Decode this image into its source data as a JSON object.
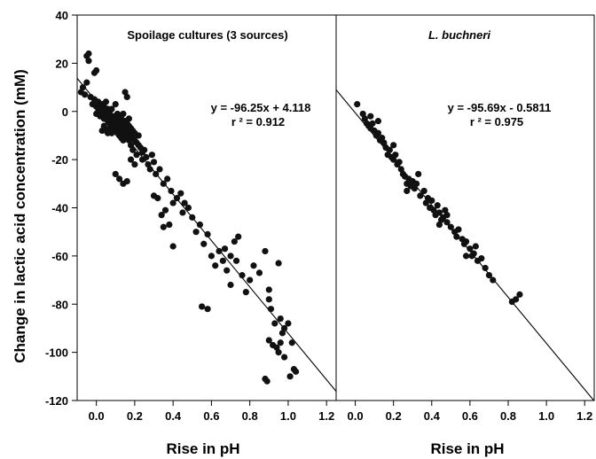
{
  "chart_data": [
    {
      "type": "scatter",
      "panel": "left",
      "title": "Spoilage cultures (3 sources)",
      "title_italic": false,
      "xlabel": "Rise in pH",
      "ylabel": "Change in lactic acid concentration (mM)",
      "xlim": [
        -0.1,
        1.25
      ],
      "ylim": [
        -120,
        40
      ],
      "x_ticks": [
        "0.0",
        "0.2",
        "0.4",
        "0.6",
        "0.8",
        "1.0",
        "1.2"
      ],
      "y_ticks": [
        "40",
        "20",
        "0",
        "-20",
        "-40",
        "-60",
        "-80",
        "-100",
        "-120"
      ],
      "equation": "y = -96.25x + 4.118",
      "r_squared": "r ² = 0.912",
      "regression": {
        "slope": -96.25,
        "intercept": 4.118
      },
      "points": [
        [
          -0.08,
          8
        ],
        [
          -0.07,
          10
        ],
        [
          -0.06,
          7
        ],
        [
          -0.05,
          12
        ],
        [
          -0.05,
          23
        ],
        [
          -0.04,
          24
        ],
        [
          -0.04,
          21
        ],
        [
          -0.03,
          6
        ],
        [
          -0.02,
          3
        ],
        [
          -0.01,
          5
        ],
        [
          -0.01,
          16
        ],
        [
          0.0,
          17
        ],
        [
          0.0,
          2
        ],
        [
          0.0,
          -1
        ],
        [
          0.01,
          4
        ],
        [
          0.01,
          0
        ],
        [
          0.02,
          2
        ],
        [
          0.02,
          -2
        ],
        [
          0.02,
          1
        ],
        [
          0.03,
          3
        ],
        [
          0.03,
          -1
        ],
        [
          0.03,
          -8
        ],
        [
          0.04,
          -3
        ],
        [
          0.04,
          2
        ],
        [
          0.04,
          -6
        ],
        [
          0.05,
          0
        ],
        [
          0.05,
          -2
        ],
        [
          0.05,
          4
        ],
        [
          0.05,
          -8
        ],
        [
          0.06,
          -1
        ],
        [
          0.06,
          -4
        ],
        [
          0.06,
          1
        ],
        [
          0.06,
          -9
        ],
        [
          0.07,
          -2
        ],
        [
          0.07,
          -5
        ],
        [
          0.07,
          0
        ],
        [
          0.07,
          -7
        ],
        [
          0.08,
          -3
        ],
        [
          0.08,
          -6
        ],
        [
          0.08,
          1
        ],
        [
          0.08,
          -9
        ],
        [
          0.09,
          -4
        ],
        [
          0.09,
          -7
        ],
        [
          0.09,
          -2
        ],
        [
          0.1,
          -5
        ],
        [
          0.1,
          -8
        ],
        [
          0.1,
          -3
        ],
        [
          0.1,
          3
        ],
        [
          0.11,
          -6
        ],
        [
          0.11,
          -9
        ],
        [
          0.11,
          -4
        ],
        [
          0.11,
          -1
        ],
        [
          0.12,
          -7
        ],
        [
          0.12,
          -10
        ],
        [
          0.12,
          -5
        ],
        [
          0.12,
          -2
        ],
        [
          0.13,
          -8
        ],
        [
          0.13,
          -11
        ],
        [
          0.13,
          -6
        ],
        [
          0.13,
          -3
        ],
        [
          0.14,
          -9
        ],
        [
          0.14,
          -12
        ],
        [
          0.14,
          -5
        ],
        [
          0.14,
          -1
        ],
        [
          0.15,
          -10
        ],
        [
          0.15,
          -7
        ],
        [
          0.15,
          -4
        ],
        [
          0.15,
          8
        ],
        [
          0.16,
          -11
        ],
        [
          0.16,
          -8
        ],
        [
          0.16,
          -5
        ],
        [
          0.16,
          6
        ],
        [
          0.17,
          -12
        ],
        [
          0.17,
          -9
        ],
        [
          0.17,
          -6
        ],
        [
          0.17,
          -3
        ],
        [
          0.18,
          -10
        ],
        [
          0.18,
          -7
        ],
        [
          0.18,
          -14
        ],
        [
          0.19,
          -11
        ],
        [
          0.19,
          -8
        ],
        [
          0.19,
          -16
        ],
        [
          0.2,
          -12
        ],
        [
          0.2,
          -9
        ],
        [
          0.21,
          -13
        ],
        [
          0.21,
          -18
        ],
        [
          0.22,
          -14
        ],
        [
          0.22,
          -10
        ],
        [
          0.23,
          -15
        ],
        [
          0.24,
          -17
        ],
        [
          0.24,
          -20
        ],
        [
          0.25,
          -16
        ],
        [
          0.26,
          -19
        ],
        [
          0.27,
          -22
        ],
        [
          0.28,
          -24
        ],
        [
          0.29,
          -18
        ],
        [
          0.3,
          -21
        ],
        [
          0.31,
          -26
        ],
        [
          0.33,
          -24
        ],
        [
          0.35,
          -30
        ],
        [
          0.37,
          -28
        ],
        [
          0.39,
          -33
        ],
        [
          0.1,
          -26
        ],
        [
          0.12,
          -28
        ],
        [
          0.14,
          -30
        ],
        [
          0.16,
          -29
        ],
        [
          0.18,
          -20
        ],
        [
          0.2,
          -22
        ],
        [
          0.3,
          -35
        ],
        [
          0.32,
          -36
        ],
        [
          0.34,
          -43
        ],
        [
          0.35,
          -48
        ],
        [
          0.38,
          -47
        ],
        [
          0.36,
          -41
        ],
        [
          0.4,
          -38
        ],
        [
          0.42,
          -36
        ],
        [
          0.44,
          -34
        ],
        [
          0.45,
          -42
        ],
        [
          0.46,
          -38
        ],
        [
          0.48,
          -40
        ],
        [
          0.4,
          -56
        ],
        [
          0.5,
          -44
        ],
        [
          0.52,
          -50
        ],
        [
          0.54,
          -47
        ],
        [
          0.56,
          -55
        ],
        [
          0.58,
          -51
        ],
        [
          0.55,
          -81
        ],
        [
          0.58,
          -82
        ],
        [
          0.6,
          -60
        ],
        [
          0.62,
          -64
        ],
        [
          0.64,
          -58
        ],
        [
          0.66,
          -62
        ],
        [
          0.67,
          -57
        ],
        [
          0.68,
          -66
        ],
        [
          0.7,
          -60
        ],
        [
          0.72,
          -54
        ],
        [
          0.73,
          -62
        ],
        [
          0.74,
          -52
        ],
        [
          0.7,
          -72
        ],
        [
          0.76,
          -68
        ],
        [
          0.78,
          -75
        ],
        [
          0.8,
          -70
        ],
        [
          0.82,
          -64
        ],
        [
          0.85,
          -67
        ],
        [
          0.88,
          -58
        ],
        [
          0.9,
          -74
        ],
        [
          0.9,
          -78
        ],
        [
          0.91,
          -82
        ],
        [
          0.93,
          -88
        ],
        [
          0.95,
          -63
        ],
        [
          0.96,
          -86
        ],
        [
          0.97,
          -92
        ],
        [
          0.98,
          -90
        ],
        [
          0.9,
          -95
        ],
        [
          0.92,
          -97
        ],
        [
          0.94,
          -98
        ],
        [
          0.95,
          -100
        ],
        [
          0.96,
          -96
        ],
        [
          1.0,
          -88
        ],
        [
          1.02,
          -96
        ],
        [
          1.03,
          -107
        ],
        [
          1.04,
          -108
        ],
        [
          0.88,
          -111
        ],
        [
          0.89,
          -112
        ],
        [
          0.98,
          -102
        ],
        [
          1.01,
          -110
        ]
      ]
    },
    {
      "type": "scatter",
      "panel": "right",
      "title": "L. buchneri",
      "title_italic": true,
      "xlabel": "Rise in pH",
      "ylabel": "",
      "xlim": [
        -0.1,
        1.25
      ],
      "ylim": [
        -120,
        40
      ],
      "x_ticks": [
        "0.0",
        "0.2",
        "0.4",
        "0.6",
        "0.8",
        "1.0",
        "1.2"
      ],
      "equation": "y = -95.69x - 0.5811",
      "r_squared": "r ² = 0.975",
      "regression": {
        "slope": -95.69,
        "intercept": -0.5811
      },
      "points": [
        [
          0.01,
          3
        ],
        [
          0.04,
          -1
        ],
        [
          0.05,
          -3
        ],
        [
          0.06,
          -5
        ],
        [
          0.07,
          -6
        ],
        [
          0.08,
          -7
        ],
        [
          0.09,
          -5
        ],
        [
          0.1,
          -8
        ],
        [
          0.11,
          -10
        ],
        [
          0.12,
          -9
        ],
        [
          0.13,
          -12
        ],
        [
          0.14,
          -11
        ],
        [
          0.15,
          -13
        ],
        [
          0.16,
          -15
        ],
        [
          0.17,
          -18
        ],
        [
          0.18,
          -16
        ],
        [
          0.19,
          -19
        ],
        [
          0.2,
          -20
        ],
        [
          0.21,
          -18
        ],
        [
          0.22,
          -22
        ],
        [
          0.23,
          -21
        ],
        [
          0.24,
          -24
        ],
        [
          0.25,
          -26
        ],
        [
          0.26,
          -27
        ],
        [
          0.27,
          -30
        ],
        [
          0.28,
          -28
        ],
        [
          0.29,
          -31
        ],
        [
          0.3,
          -29
        ],
        [
          0.31,
          -32
        ],
        [
          0.32,
          -30
        ],
        [
          0.34,
          -35
        ],
        [
          0.36,
          -33
        ],
        [
          0.37,
          -38
        ],
        [
          0.38,
          -36
        ],
        [
          0.39,
          -40
        ],
        [
          0.4,
          -37
        ],
        [
          0.41,
          -41
        ],
        [
          0.42,
          -43
        ],
        [
          0.43,
          -39
        ],
        [
          0.44,
          -42
        ],
        [
          0.45,
          -45
        ],
        [
          0.46,
          -44
        ],
        [
          0.47,
          -41
        ],
        [
          0.48,
          -46
        ],
        [
          0.5,
          -48
        ],
        [
          0.52,
          -50
        ],
        [
          0.53,
          -52
        ],
        [
          0.54,
          -49
        ],
        [
          0.56,
          -53
        ],
        [
          0.57,
          -55
        ],
        [
          0.58,
          -54
        ],
        [
          0.6,
          -57
        ],
        [
          0.61,
          -60
        ],
        [
          0.62,
          -59
        ],
        [
          0.63,
          -56
        ],
        [
          0.64,
          -62
        ],
        [
          0.66,
          -61
        ],
        [
          0.68,
          -65
        ],
        [
          0.7,
          -68
        ],
        [
          0.72,
          -70
        ],
        [
          0.82,
          -79
        ],
        [
          0.84,
          -78
        ],
        [
          0.86,
          -76
        ],
        [
          0.08,
          -2
        ],
        [
          0.12,
          -4
        ],
        [
          0.2,
          -14
        ],
        [
          0.27,
          -33
        ],
        [
          0.33,
          -26
        ],
        [
          0.44,
          -47
        ],
        [
          0.48,
          -43
        ],
        [
          0.58,
          -60
        ]
      ]
    }
  ]
}
